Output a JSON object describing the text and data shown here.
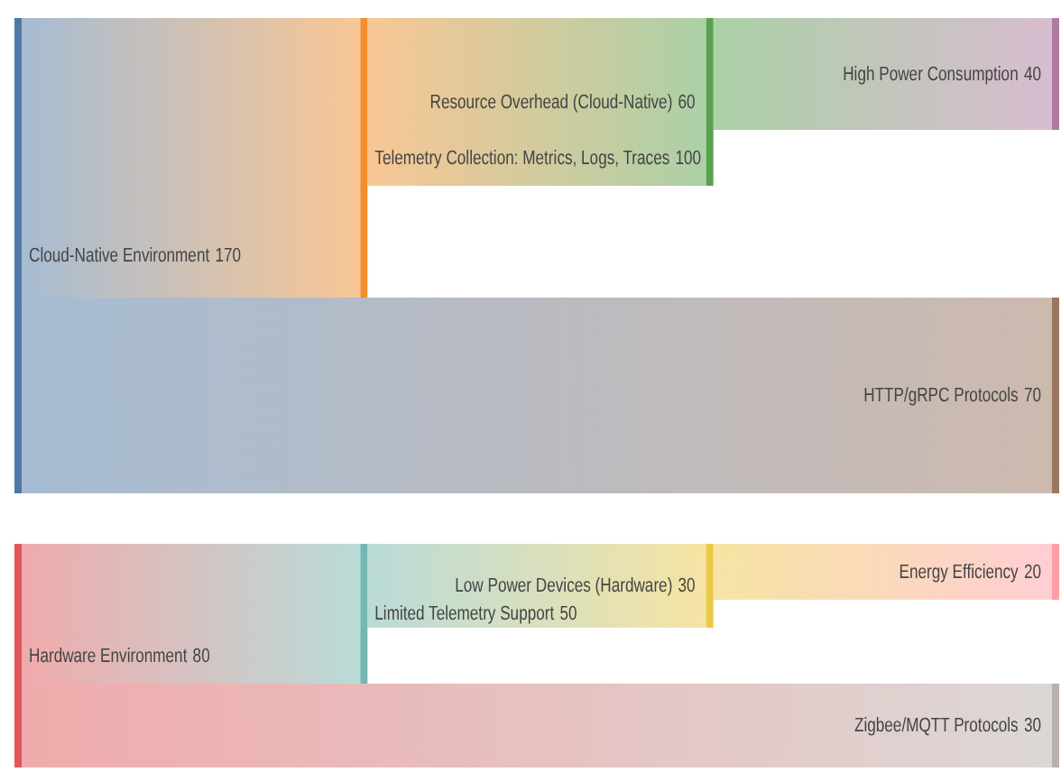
{
  "chart_data": [
    {
      "type": "other",
      "categories": [
        "Cloud-Native Environment",
        "Telemetry Collection: Metrics, Logs, Traces",
        "Resource Overhead (Cloud-Native)",
        "High Power Consumption",
        "HTTP/gRPC Protocols"
      ],
      "values": [
        170,
        100,
        60,
        40,
        70
      ],
      "colors": [
        "#4e79a7",
        "#f28e2b",
        "#59a14f",
        "#b07aa1",
        "#9c755f"
      ],
      "data_labels": true
    },
    {
      "type": "other",
      "categories": [
        "Hardware Environment",
        "Limited Telemetry Support",
        "Low Power Devices (Hardware)",
        "Energy Efficiency",
        "Zigbee/MQTT Protocols"
      ],
      "values": [
        80,
        50,
        30,
        20,
        30
      ],
      "colors": [
        "#e15759",
        "#76b7b2",
        "#edc948",
        "#ff9da7",
        "#bab0ac"
      ],
      "data_labels": true
    }
  ]
}
